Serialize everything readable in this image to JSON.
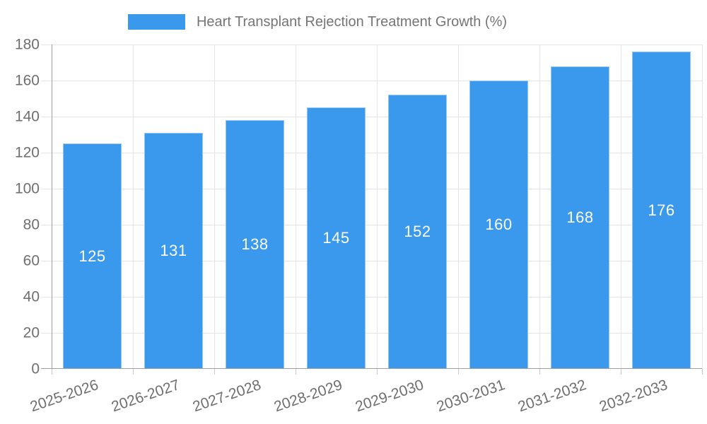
{
  "chart_data": {
    "type": "bar",
    "title": "Heart Transplant Rejection Treatment Growth (%)",
    "categories": [
      "2025-2026",
      "2026-2027",
      "2027-2028",
      "2028-2029",
      "2029-2030",
      "2030-2031",
      "2031-2032",
      "2032-2033"
    ],
    "values": [
      125,
      131,
      138,
      145,
      152,
      160,
      168,
      176
    ],
    "value_labels": [
      "125",
      "131",
      "138",
      "145",
      "152",
      "160",
      "168",
      "176"
    ],
    "xlabel": "",
    "ylabel": "",
    "ylim": [
      0,
      180
    ],
    "ytick_step": 20,
    "ytick_labels": [
      "0",
      "20",
      "40",
      "60",
      "80",
      "100",
      "120",
      "140",
      "160",
      "180"
    ],
    "grid": "both",
    "legend_position": "top-center",
    "colors": {
      "bar": "#3A99EC",
      "grid": "#e4e4e4",
      "axis": "#9e9e9e",
      "tick": "#c9c9c9",
      "axis_text": "#6f6f6f",
      "legend_text": "#757575",
      "value_label_text": "#ffffff",
      "background": "#ffffff"
    }
  }
}
